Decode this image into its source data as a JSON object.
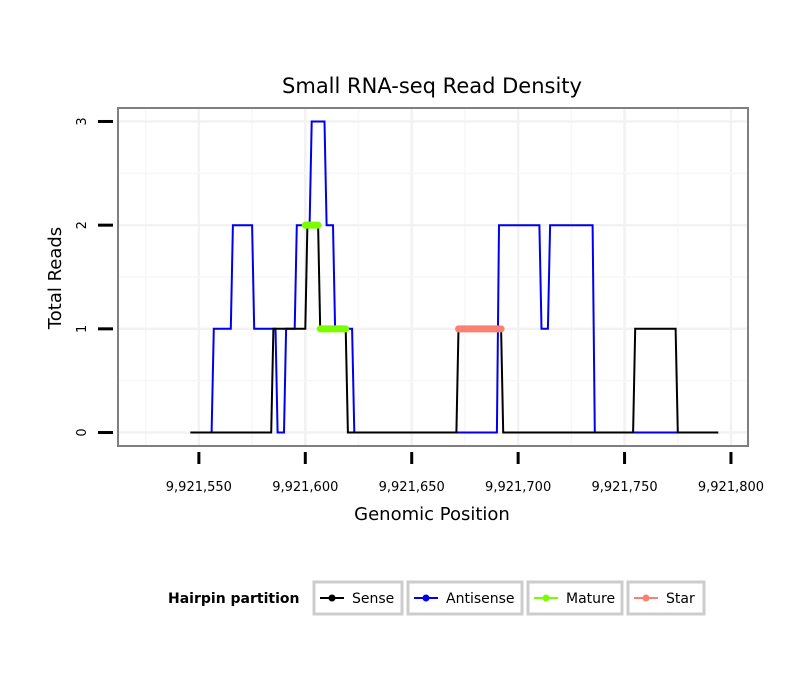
{
  "chart_data": {
    "type": "line",
    "title": "Small RNA-seq Read Density",
    "xlabel": "Genomic Position",
    "ylabel": "Total Reads",
    "xlim": [
      9921512,
      9921808
    ],
    "ylim": [
      -0.13,
      3.13
    ],
    "x_ticks": [
      9921550,
      9921600,
      9921650,
      9921700,
      9921750,
      9921800
    ],
    "x_tick_labels": [
      "9,921,550",
      "9,921,600",
      "9,921,650",
      "9,921,700",
      "9,921,750",
      "9,921,800"
    ],
    "y_ticks": [
      0,
      1,
      2,
      3
    ],
    "y_tick_labels": [
      "0",
      "1",
      "2",
      "3"
    ],
    "grid": true,
    "legend": {
      "title": "Hairpin partition",
      "position": "bottom",
      "entries": [
        "Sense",
        "Antisense",
        "Mature",
        "Star"
      ]
    },
    "series": [
      {
        "name": "Sense",
        "color": "#000000",
        "type": "step",
        "x": [
          9921546,
          9921584,
          9921585,
          9921586,
          9921600,
          9921601,
          9921606,
          9921607,
          9921619,
          9921620,
          9921671,
          9921672,
          9921692,
          9921693,
          9921754,
          9921755,
          9921774,
          9921775,
          9921794
        ],
        "y": [
          0,
          0,
          1,
          1,
          1,
          2,
          2,
          1,
          1,
          0,
          0,
          1,
          1,
          0,
          0,
          1,
          1,
          0,
          0
        ]
      },
      {
        "name": "Antisense",
        "color": "#0000ee",
        "type": "step",
        "x": [
          9921546,
          9921556,
          9921557,
          9921565,
          9921566,
          9921575,
          9921576,
          9921586,
          9921587,
          9921590,
          9921591,
          9921595,
          9921596,
          9921602,
          9921603,
          9921609,
          9921610,
          9921613,
          9921614,
          9921622,
          9921623,
          9921690,
          9921691,
          9921710,
          9921711,
          9921714,
          9921715,
          9921735,
          9921736,
          9921794
        ],
        "y": [
          0,
          0,
          1,
          1,
          2,
          2,
          1,
          1,
          0,
          0,
          1,
          1,
          2,
          2,
          3,
          3,
          2,
          2,
          1,
          1,
          0,
          0,
          2,
          2,
          1,
          1,
          2,
          2,
          0,
          0
        ]
      },
      {
        "name": "Mature",
        "color": "#7cfc00",
        "type": "segments",
        "segments": [
          {
            "x": [
              9921600,
              9921606
            ],
            "y": 2
          },
          {
            "x": [
              9921607,
              9921619
            ],
            "y": 1
          }
        ]
      },
      {
        "name": "Star",
        "color": "#fa8072",
        "type": "segments",
        "segments": [
          {
            "x": [
              9921672,
              9921692
            ],
            "y": 1
          }
        ]
      }
    ]
  }
}
